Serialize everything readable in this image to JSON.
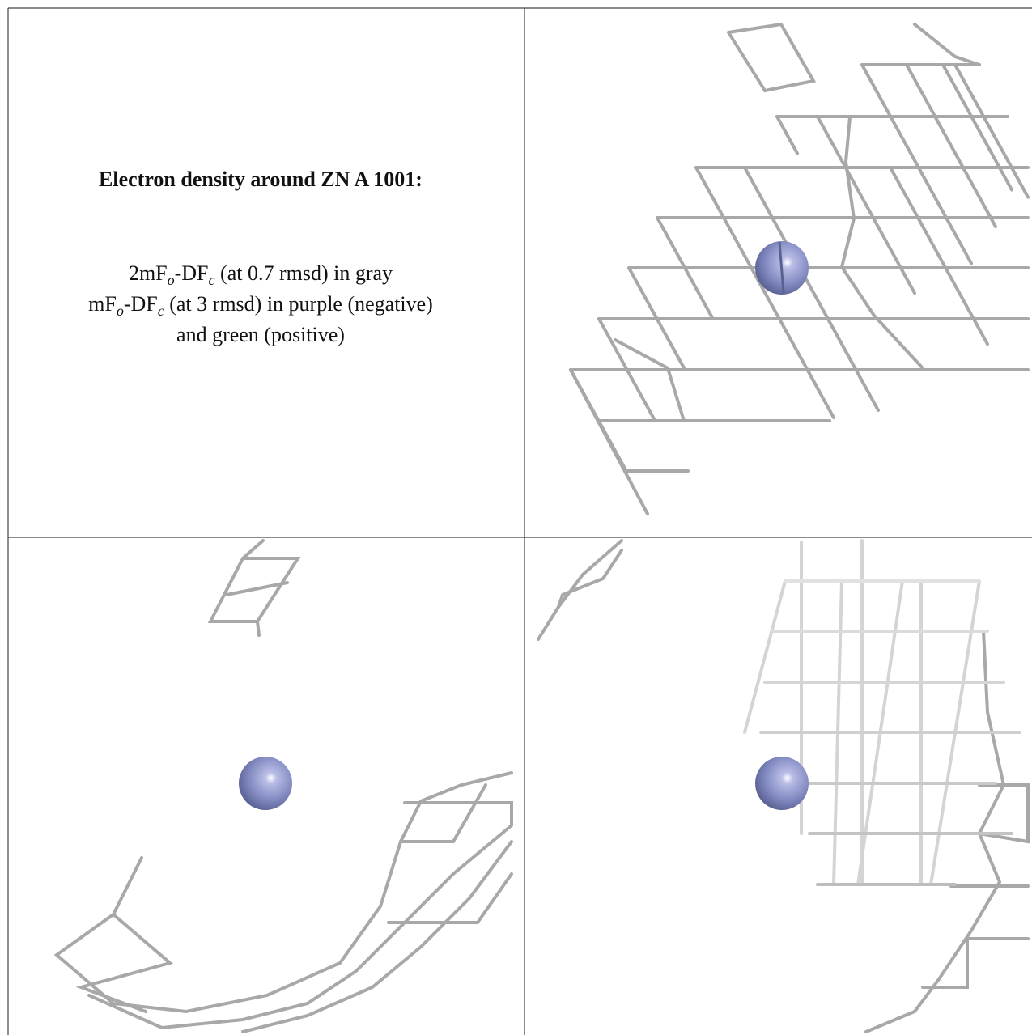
{
  "legend": {
    "title": "Electron density around ZN A 1001:",
    "lines": [
      [
        "2mF",
        "o",
        "-DF",
        "c",
        " (at 0.7 rmsd) in gray"
      ],
      [
        "mF",
        "o",
        "-DF",
        "c",
        " (at 3 rmsd) in purple (negative)"
      ],
      [
        "and green (positive)"
      ]
    ]
  }
}
